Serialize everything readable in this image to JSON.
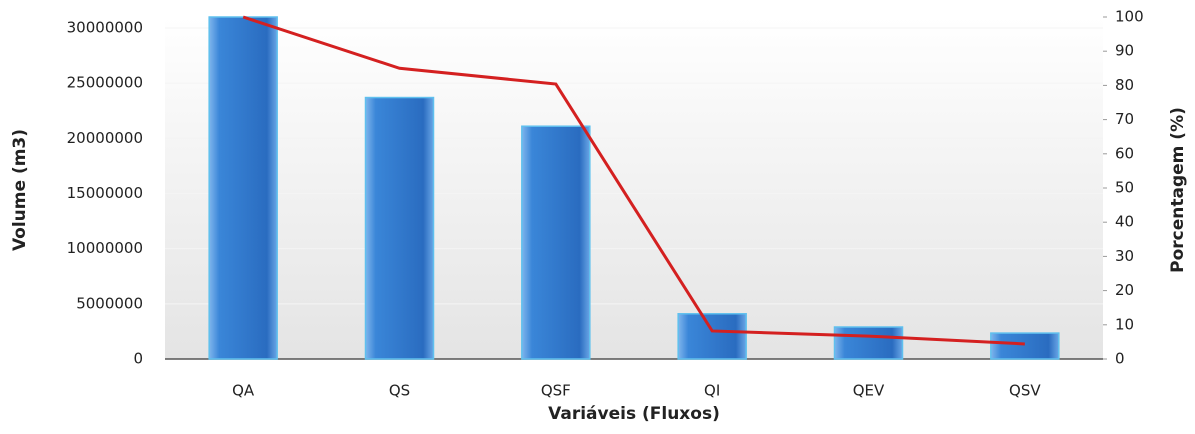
{
  "chart_data": {
    "type": "bar",
    "x_label": "Variáveis (Fluxos)",
    "y_label": "Volume (m3)",
    "y2_label": "Porcentagem (%)",
    "categories": [
      "QA",
      "QS",
      "QSF",
      "QI",
      "QEV",
      "QSV"
    ],
    "series": [
      {
        "name": "Volume",
        "type": "bar",
        "color": "#2f78cf",
        "values": [
          31000000,
          23700000,
          21100000,
          4100000,
          2900000,
          2350000
        ]
      },
      {
        "name": "Porcentagem",
        "type": "line",
        "axis": "y2",
        "color": "#d42020",
        "values": [
          100,
          85,
          80.4,
          8.2,
          6.7,
          4.4
        ]
      }
    ],
    "ylim": [
      0,
      31000000
    ],
    "yticks": [
      0,
      5000000,
      10000000,
      15000000,
      20000000,
      25000000,
      30000000
    ],
    "y2lim": [
      0,
      100
    ],
    "y2ticks": [
      0,
      10,
      20,
      30,
      40,
      50,
      60,
      70,
      80,
      90,
      100
    ],
    "grid": true
  }
}
